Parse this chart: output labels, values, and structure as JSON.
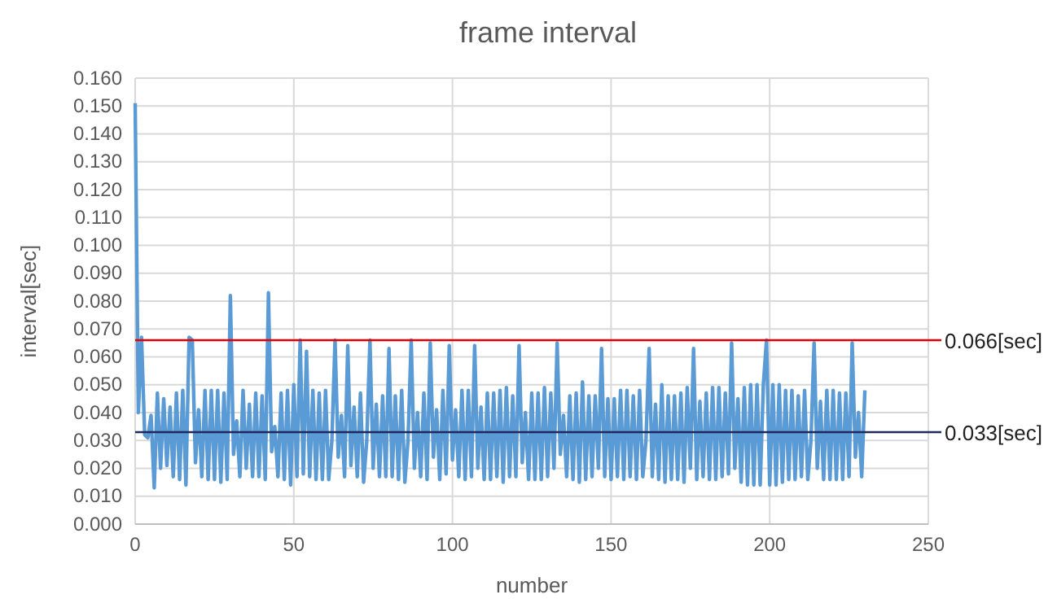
{
  "chart_data": {
    "type": "line",
    "title": "frame interval",
    "xlabel": "number",
    "ylabel": "interval[sec]",
    "xlim": [
      0,
      250
    ],
    "xticks": [
      0,
      50,
      100,
      150,
      200,
      250
    ],
    "ylim": [
      0,
      0.16
    ],
    "yticks": [
      {
        "value": 0,
        "label": "0.000"
      },
      {
        "value": 0.01,
        "label": "0.010"
      },
      {
        "value": 0.02,
        "label": "0.020"
      },
      {
        "value": 0.03,
        "label": "0.030"
      },
      {
        "value": 0.04,
        "label": "0.040"
      },
      {
        "value": 0.05,
        "label": "0.050"
      },
      {
        "value": 0.06,
        "label": "0.060"
      },
      {
        "value": 0.07,
        "label": "0.070"
      },
      {
        "value": 0.08,
        "label": "0.080"
      },
      {
        "value": 0.09,
        "label": "0.090"
      },
      {
        "value": 0.1,
        "label": "0.100"
      },
      {
        "value": 0.11,
        "label": "0.110"
      },
      {
        "value": 0.12,
        "label": "0.120"
      },
      {
        "value": 0.13,
        "label": "0.130"
      },
      {
        "value": 0.14,
        "label": "0.140"
      },
      {
        "value": 0.15,
        "label": "0.150"
      },
      {
        "value": 0.16,
        "label": "0.160"
      }
    ],
    "grid": true,
    "marker": "none",
    "line_style": "solid",
    "ref_lines": [
      {
        "axis": "y",
        "value": 0.066,
        "label": "0.066[sec]",
        "color": "#e00000"
      },
      {
        "axis": "y",
        "value": 0.033,
        "label": "0.033[sec]",
        "color": "#1f2a5c"
      }
    ],
    "x": [
      0,
      1,
      2,
      3,
      4,
      5,
      6,
      7,
      8,
      9,
      10,
      11,
      12,
      13,
      14,
      15,
      16,
      17,
      18,
      19,
      20,
      21,
      22,
      23,
      24,
      25,
      26,
      27,
      28,
      29,
      30,
      31,
      32,
      33,
      34,
      35,
      36,
      37,
      38,
      39,
      40,
      41,
      42,
      43,
      44,
      45,
      46,
      47,
      48,
      49,
      50,
      51,
      52,
      53,
      54,
      55,
      56,
      57,
      58,
      59,
      60,
      61,
      62,
      63,
      64,
      65,
      66,
      67,
      68,
      69,
      70,
      71,
      72,
      73,
      74,
      75,
      76,
      77,
      78,
      79,
      80,
      81,
      82,
      83,
      84,
      85,
      86,
      87,
      88,
      89,
      90,
      91,
      92,
      93,
      94,
      95,
      96,
      97,
      98,
      99,
      100,
      101,
      102,
      103,
      104,
      105,
      106,
      107,
      108,
      109,
      110,
      111,
      112,
      113,
      114,
      115,
      116,
      117,
      118,
      119,
      120,
      121,
      122,
      123,
      124,
      125,
      126,
      127,
      128,
      129,
      130,
      131,
      132,
      133,
      134,
      135,
      136,
      137,
      138,
      139,
      140,
      141,
      142,
      143,
      144,
      145,
      146,
      147,
      148,
      149,
      150,
      151,
      152,
      153,
      154,
      155,
      156,
      157,
      158,
      159,
      160,
      161,
      162,
      163,
      164,
      165,
      166,
      167,
      168,
      169,
      170,
      171,
      172,
      173,
      174,
      175,
      176,
      177,
      178,
      179,
      180,
      181,
      182,
      183,
      184,
      185,
      186,
      187,
      188,
      189,
      190,
      191,
      192,
      193,
      194,
      195,
      196,
      197,
      198,
      199,
      200,
      201,
      202,
      203,
      204,
      205,
      206,
      207,
      208,
      209,
      210,
      211,
      212,
      213,
      214,
      215,
      216,
      217,
      218,
      219,
      220,
      221,
      222,
      223,
      224,
      225,
      226,
      227,
      228,
      229,
      230
    ],
    "series": [
      {
        "color": "#5b9bd5",
        "values": [
          0.151,
          0.04,
          0.067,
          0.032,
          0.031,
          0.039,
          0.013,
          0.047,
          0.02,
          0.045,
          0.021,
          0.042,
          0.017,
          0.047,
          0.016,
          0.048,
          0.014,
          0.067,
          0.066,
          0.022,
          0.041,
          0.017,
          0.048,
          0.016,
          0.048,
          0.016,
          0.048,
          0.015,
          0.047,
          0.016,
          0.082,
          0.025,
          0.037,
          0.017,
          0.048,
          0.02,
          0.043,
          0.017,
          0.047,
          0.017,
          0.046,
          0.016,
          0.083,
          0.026,
          0.035,
          0.017,
          0.047,
          0.016,
          0.048,
          0.014,
          0.05,
          0.017,
          0.066,
          0.018,
          0.062,
          0.017,
          0.048,
          0.016,
          0.047,
          0.016,
          0.048,
          0.016,
          0.03,
          0.066,
          0.024,
          0.039,
          0.017,
          0.064,
          0.021,
          0.042,
          0.017,
          0.047,
          0.015,
          0.03,
          0.066,
          0.02,
          0.043,
          0.017,
          0.046,
          0.017,
          0.063,
          0.017,
          0.046,
          0.016,
          0.048,
          0.015,
          0.03,
          0.066,
          0.02,
          0.04,
          0.017,
          0.047,
          0.016,
          0.065,
          0.024,
          0.041,
          0.016,
          0.048,
          0.018,
          0.064,
          0.023,
          0.041,
          0.017,
          0.048,
          0.016,
          0.048,
          0.017,
          0.064,
          0.02,
          0.042,
          0.016,
          0.047,
          0.016,
          0.047,
          0.017,
          0.048,
          0.015,
          0.049,
          0.017,
          0.046,
          0.017,
          0.064,
          0.022,
          0.04,
          0.016,
          0.047,
          0.016,
          0.047,
          0.016,
          0.049,
          0.017,
          0.047,
          0.02,
          0.065,
          0.025,
          0.039,
          0.017,
          0.046,
          0.016,
          0.047,
          0.015,
          0.051,
          0.016,
          0.046,
          0.017,
          0.046,
          0.02,
          0.063,
          0.017,
          0.045,
          0.016,
          0.045,
          0.017,
          0.048,
          0.016,
          0.048,
          0.017,
          0.046,
          0.016,
          0.048,
          0.017,
          0.03,
          0.063,
          0.017,
          0.043,
          0.016,
          0.05,
          0.015,
          0.046,
          0.016,
          0.046,
          0.016,
          0.047,
          0.015,
          0.049,
          0.02,
          0.063,
          0.016,
          0.044,
          0.017,
          0.047,
          0.016,
          0.049,
          0.016,
          0.049,
          0.017,
          0.047,
          0.018,
          0.065,
          0.02,
          0.045,
          0.015,
          0.049,
          0.014,
          0.05,
          0.014,
          0.05,
          0.014,
          0.05,
          0.066,
          0.014,
          0.05,
          0.014,
          0.05,
          0.015,
          0.048,
          0.016,
          0.048,
          0.016,
          0.046,
          0.017,
          0.048,
          0.016,
          0.03,
          0.065,
          0.02,
          0.044,
          0.016,
          0.048,
          0.016,
          0.048,
          0.016,
          0.047,
          0.016,
          0.047,
          0.017,
          0.065,
          0.024,
          0.04,
          0.017,
          0.048
        ]
      }
    ]
  }
}
